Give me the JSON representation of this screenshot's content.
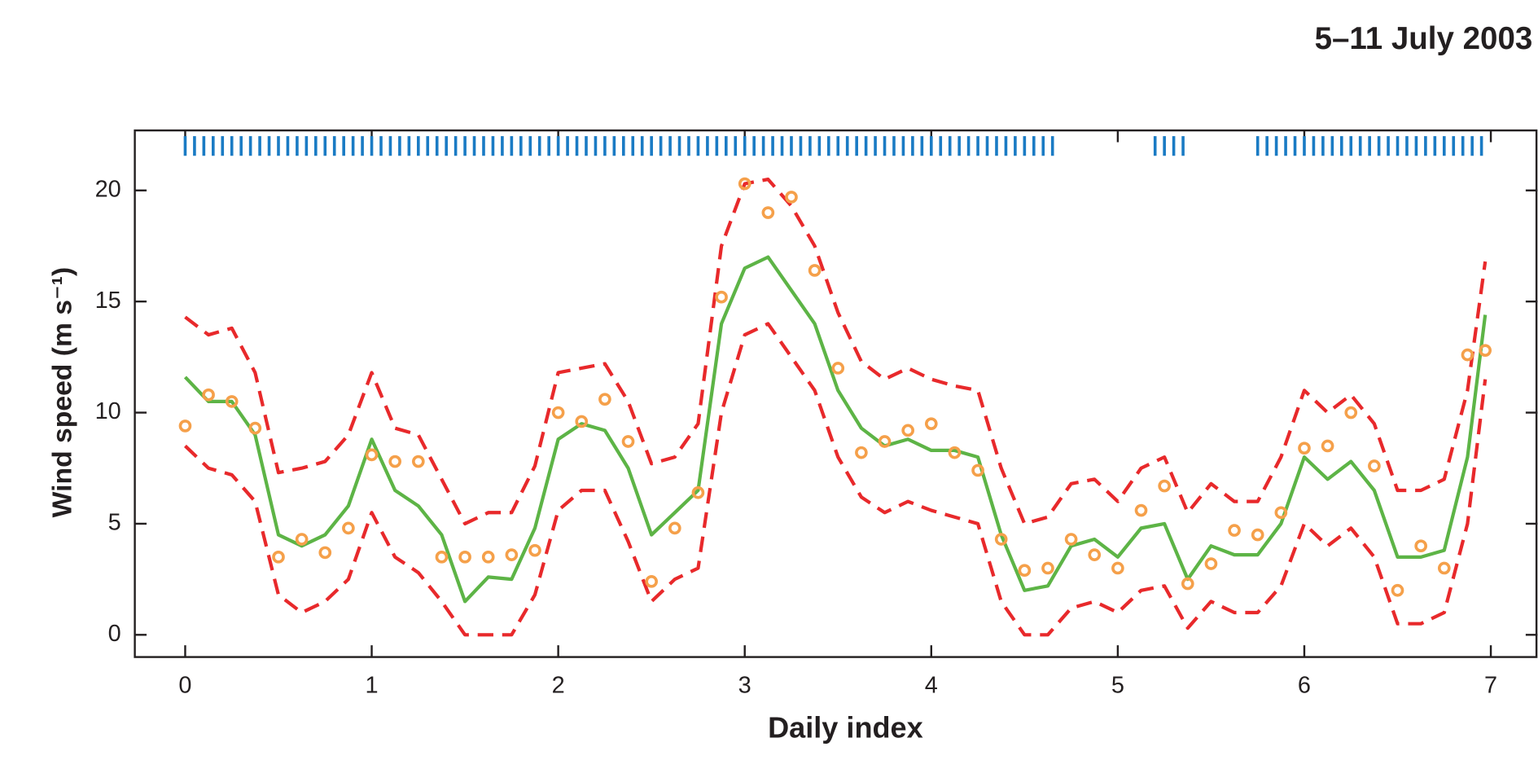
{
  "chart_data": {
    "type": "line",
    "title": "5–11 July 2003",
    "x_label": "Daily index",
    "y_label": "Wind speed (m s⁻¹)",
    "xlim": [
      -0.27,
      7.25
    ],
    "ylim": [
      -1,
      22.7
    ],
    "xticks": [
      0,
      1,
      2,
      3,
      4,
      5,
      6,
      7
    ],
    "yticks": [
      0,
      5,
      10,
      15,
      20
    ],
    "grid": false,
    "x": [
      0,
      0.125,
      0.25,
      0.375,
      0.5,
      0.625,
      0.75,
      0.875,
      1,
      1.125,
      1.25,
      1.375,
      1.5,
      1.625,
      1.75,
      1.875,
      2,
      2.125,
      2.25,
      2.375,
      2.5,
      2.625,
      2.75,
      2.875,
      3,
      3.125,
      3.25,
      3.375,
      3.5,
      3.625,
      3.75,
      3.875,
      4,
      4.125,
      4.25,
      4.375,
      4.5,
      4.625,
      4.75,
      4.875,
      5,
      5.125,
      5.25,
      5.375,
      5.5,
      5.625,
      5.75,
      5.875,
      6,
      6.125,
      6.25,
      6.375,
      6.5,
      6.625,
      6.75,
      6.875,
      6.97
    ],
    "series": [
      {
        "color": "#e8292b",
        "linestyle": "dashed",
        "marker": "none",
        "values": [
          14.3,
          13.5,
          13.8,
          11.8,
          7.3,
          7.5,
          7.8,
          9,
          11.8,
          9.3,
          9,
          7,
          5,
          5.5,
          5.5,
          7.6,
          11.8,
          12,
          12.2,
          10.5,
          7.7,
          8,
          9.5,
          17.5,
          20.3,
          20.5,
          19.3,
          17.5,
          14.5,
          12.3,
          11.5,
          12,
          11.5,
          11.2,
          11,
          7.5,
          5,
          5.3,
          6.8,
          7,
          6,
          7.5,
          8,
          5.5,
          6.8,
          6,
          6,
          8,
          11,
          10,
          10.8,
          9.5,
          6.5,
          6.5,
          7,
          11,
          16.8
        ]
      },
      {
        "color": "#e8292b",
        "linestyle": "dashed",
        "marker": "none",
        "values": [
          8.5,
          7.5,
          7.2,
          6,
          1.8,
          1,
          1.5,
          2.5,
          5.5,
          3.5,
          2.8,
          1.5,
          0,
          0,
          0,
          1.8,
          5.6,
          6.5,
          6.5,
          4.2,
          1.5,
          2.5,
          3,
          10,
          13.5,
          14,
          12.5,
          11,
          8,
          6.2,
          5.5,
          6,
          5.6,
          5.3,
          5,
          1.5,
          0,
          0,
          1.2,
          1.5,
          1,
          2,
          2.2,
          0.3,
          1.5,
          1,
          1,
          2.2,
          5,
          4,
          4.8,
          3.5,
          0.5,
          0.5,
          1,
          5,
          11.5
        ]
      },
      {
        "color": "#5db446",
        "linestyle": "solid",
        "marker": "none",
        "values": [
          11.6,
          10.5,
          10.5,
          9,
          4.5,
          4,
          4.5,
          5.8,
          8.8,
          6.5,
          5.8,
          4.5,
          1.5,
          2.6,
          2.5,
          4.8,
          8.8,
          9.5,
          9.2,
          7.5,
          4.5,
          5.5,
          6.5,
          14,
          16.5,
          17,
          15.5,
          14,
          11,
          9.3,
          8.5,
          8.8,
          8.3,
          8.3,
          8,
          4.5,
          2,
          2.2,
          4,
          4.3,
          3.5,
          4.8,
          5,
          2.5,
          4,
          3.6,
          3.6,
          5,
          8,
          7,
          7.8,
          6.5,
          3.5,
          3.5,
          3.8,
          8,
          14.4
        ]
      },
      {
        "color": "#f5a04a",
        "linestyle": "none",
        "marker": "circle",
        "values": [
          9.4,
          10.8,
          10.5,
          9.3,
          3.5,
          4.3,
          3.7,
          4.8,
          8.1,
          7.8,
          7.8,
          3.5,
          3.5,
          3.5,
          3.6,
          3.8,
          10,
          9.6,
          10.6,
          8.7,
          2.4,
          4.8,
          6.4,
          15.2,
          20.3,
          19,
          19.7,
          16.4,
          12,
          8.2,
          8.7,
          9.2,
          9.5,
          8.2,
          7.4,
          4.3,
          2.9,
          3,
          4.3,
          3.6,
          3,
          5.6,
          6.7,
          2.3,
          3.2,
          4.7,
          4.5,
          5.5,
          8.4,
          8.5,
          10,
          7.6,
          2,
          4,
          3,
          12.6,
          12.8
        ]
      }
    ],
    "rug": {
      "color": "#1a7bc4",
      "y": 22,
      "x": [
        0,
        0.05,
        0.1,
        0.15,
        0.2,
        0.25,
        0.3,
        0.35,
        0.4,
        0.45,
        0.5,
        0.55,
        0.6,
        0.65,
        0.7,
        0.75,
        0.8,
        0.85,
        0.9,
        0.95,
        1,
        1.05,
        1.1,
        1.15,
        1.2,
        1.25,
        1.3,
        1.35,
        1.4,
        1.45,
        1.5,
        1.55,
        1.6,
        1.65,
        1.7,
        1.75,
        1.8,
        1.85,
        1.9,
        1.95,
        2,
        2.05,
        2.1,
        2.15,
        2.2,
        2.25,
        2.3,
        2.35,
        2.4,
        2.45,
        2.5,
        2.55,
        2.6,
        2.65,
        2.7,
        2.75,
        2.8,
        2.85,
        2.9,
        2.95,
        3,
        3.05,
        3.1,
        3.15,
        3.2,
        3.25,
        3.3,
        3.35,
        3.4,
        3.45,
        3.5,
        3.55,
        3.6,
        3.65,
        3.7,
        3.75,
        3.8,
        3.85,
        3.9,
        3.95,
        4,
        4.05,
        4.1,
        4.15,
        4.2,
        4.25,
        4.3,
        4.35,
        4.4,
        4.45,
        4.5,
        4.55,
        4.6,
        4.65,
        5.2,
        5.25,
        5.3,
        5.35,
        5.75,
        5.8,
        5.85,
        5.9,
        5.95,
        6,
        6.05,
        6.1,
        6.15,
        6.2,
        6.25,
        6.3,
        6.35,
        6.4,
        6.45,
        6.5,
        6.55,
        6.6,
        6.65,
        6.7,
        6.75,
        6.8,
        6.85,
        6.9,
        6.95
      ]
    }
  }
}
